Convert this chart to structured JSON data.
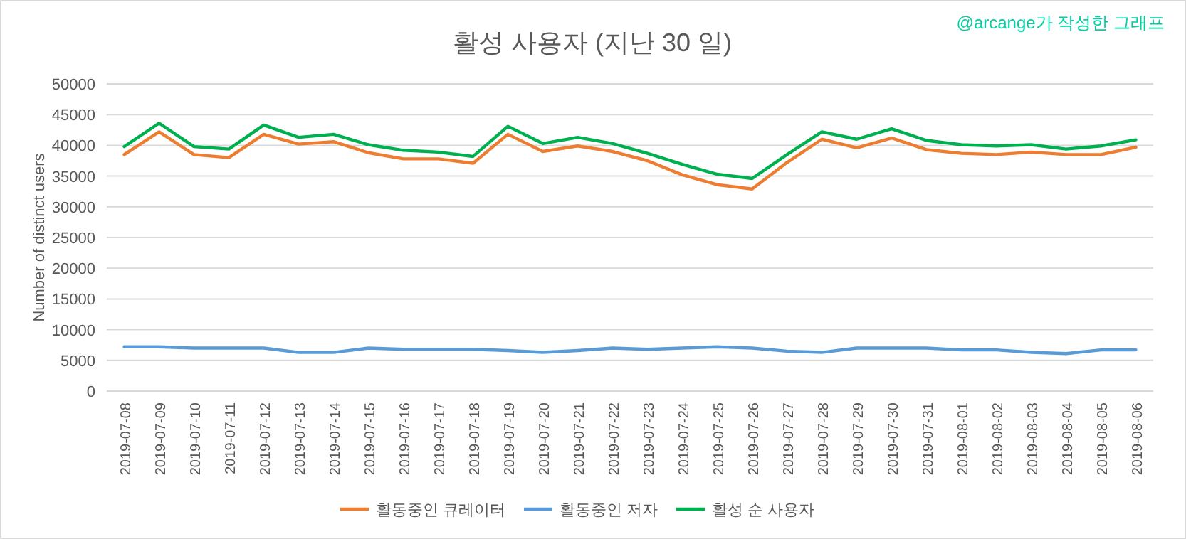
{
  "chart_data": {
    "type": "line",
    "title": "활성 사용자 (지난 30 일)",
    "ylabel": "Number of distinct users",
    "annotations": [
      "@arcange가 작성한 그래프"
    ],
    "categories": [
      "2019-07-08",
      "2019-07-09",
      "2019-07-10",
      "2019-07-11",
      "2019-07-12",
      "2019-07-13",
      "2019-07-14",
      "2019-07-15",
      "2019-07-16",
      "2019-07-17",
      "2019-07-18",
      "2019-07-19",
      "2019-07-20",
      "2019-07-21",
      "2019-07-22",
      "2019-07-23",
      "2019-07-24",
      "2019-07-25",
      "2019-07-26",
      "2019-07-27",
      "2019-07-28",
      "2019-07-29",
      "2019-07-30",
      "2019-07-31",
      "2019-08-01",
      "2019-08-02",
      "2019-08-03",
      "2019-08-04",
      "2019-08-05",
      "2019-08-06"
    ],
    "series": [
      {
        "name": "활동중인 큐레이터",
        "color": "#ed7d31",
        "values": [
          38500,
          42200,
          38500,
          38000,
          41800,
          40200,
          40600,
          38800,
          37800,
          37800,
          37100,
          41800,
          39000,
          39900,
          39000,
          37500,
          35200,
          33600,
          32900,
          37200,
          41000,
          39600,
          41200,
          39300,
          38700,
          38500,
          38900,
          38500,
          38500,
          39700
        ]
      },
      {
        "name": "활동중인 저자",
        "color": "#5b9bd5",
        "values": [
          7200,
          7200,
          7000,
          7000,
          7000,
          6300,
          6300,
          7000,
          6800,
          6800,
          6800,
          6600,
          6300,
          6600,
          7000,
          6800,
          7000,
          7200,
          7000,
          6500,
          6300,
          7000,
          7000,
          7000,
          6700,
          6700,
          6300,
          6100,
          6700,
          6700
        ]
      },
      {
        "name": "활성 순 사용자",
        "color": "#00b050",
        "values": [
          39800,
          43600,
          39800,
          39400,
          43300,
          41300,
          41800,
          40100,
          39200,
          38900,
          38200,
          43100,
          40300,
          41300,
          40300,
          38700,
          36900,
          35300,
          34600,
          38500,
          42200,
          41000,
          42700,
          40800,
          40100,
          39900,
          40100,
          39400,
          39900,
          40900
        ]
      }
    ],
    "ylim": [
      0,
      50000
    ],
    "yticks": [
      0,
      5000,
      10000,
      15000,
      20000,
      25000,
      30000,
      35000,
      40000,
      45000,
      50000
    ],
    "grid": "y",
    "legend": "bottom",
    "marker": "none",
    "line_style": "solid"
  }
}
